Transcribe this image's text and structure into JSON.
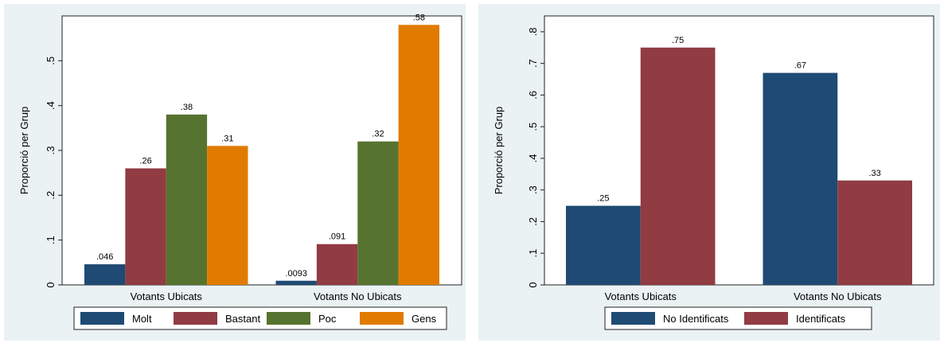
{
  "chart_data": [
    {
      "type": "bar",
      "title": "",
      "xlabel": "",
      "ylabel": "Proporció per Grup",
      "ylim": [
        0,
        0.6
      ],
      "yticks": [
        0,
        0.1,
        0.2,
        0.3,
        0.4,
        0.5
      ],
      "ytick_labels": [
        "0",
        ".1",
        ".2",
        ".3",
        ".4",
        ".5"
      ],
      "categories": [
        "Votants Ubicats",
        "Votants No Ubicats"
      ],
      "series": [
        {
          "name": "Molt",
          "color": "#1f4a73",
          "values": [
            0.046,
            0.0093
          ],
          "labels": [
            ".046",
            ".0093"
          ]
        },
        {
          "name": "Bastant",
          "color": "#913b43",
          "values": [
            0.26,
            0.091
          ],
          "labels": [
            ".26",
            ".091"
          ]
        },
        {
          "name": "Poc",
          "color": "#577330",
          "values": [
            0.38,
            0.32
          ],
          "labels": [
            ".38",
            ".32"
          ]
        },
        {
          "name": "Gens",
          "color": "#e07b00",
          "values": [
            0.31,
            0.58
          ],
          "labels": [
            ".31",
            ".58"
          ]
        }
      ],
      "grid": false,
      "legend_position": "bottom"
    },
    {
      "type": "bar",
      "title": "",
      "xlabel": "",
      "ylabel": "Proporció per Grup",
      "ylim": [
        0,
        0.85
      ],
      "yticks": [
        0,
        0.1,
        0.2,
        0.3,
        0.4,
        0.5,
        0.6,
        0.7,
        0.8
      ],
      "ytick_labels": [
        "0",
        ".1",
        ".2",
        ".3",
        ".4",
        ".5",
        ".6",
        ".7",
        ".8"
      ],
      "categories": [
        "Votants Ubicats",
        "Votants No Ubicats"
      ],
      "series": [
        {
          "name": "No Identificats",
          "color": "#1f4a73",
          "values": [
            0.25,
            0.67
          ],
          "labels": [
            ".25",
            ".67"
          ]
        },
        {
          "name": "Identificats",
          "color": "#913b43",
          "values": [
            0.75,
            0.33
          ],
          "labels": [
            ".75",
            ".33"
          ]
        }
      ],
      "grid": false,
      "legend_position": "bottom"
    }
  ]
}
